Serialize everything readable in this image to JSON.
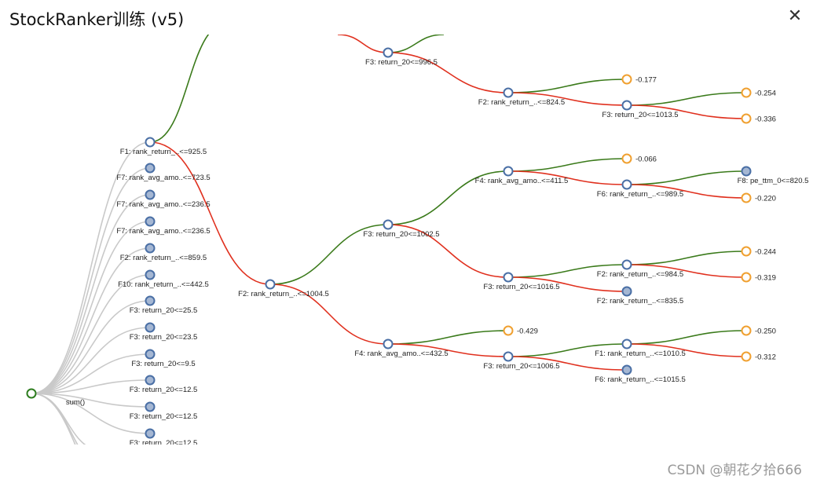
{
  "dialog": {
    "title": "StockRanker训练 (v5)",
    "close_icon": "close-icon"
  },
  "watermark": "CSDN @朝花夕拾666",
  "colors": {
    "edge_green": "#3a7a1a",
    "edge_red": "#e0301e",
    "edge_gray": "#c9c9c9",
    "node_stroke": "#4a6fa5",
    "node_fill_collapsed": "#a5b7d3",
    "leaf_stroke": "#f0a030",
    "root_stroke": "#2e7d1f"
  },
  "tree": {
    "root_label": "sum()",
    "left_column": [
      "F1: rank_return_..<=925.5",
      "F7: rank_avg_amo..<=723.5",
      "F7: rank_avg_amo..<=236.5",
      "F7: rank_avg_amo..<=236.5",
      "F2: rank_return_..<=859.5",
      "F10: rank_return_..<=442.5",
      "F3: return_20<=25.5",
      "F3: return_20<=23.5",
      "F3: return_20<=9.5",
      "F3: return_20<=12.5",
      "F3: return_20<=12.5",
      "F3: return_20<=12.5"
    ],
    "nodes": {
      "n_f2_mid": "F2: rank_return_..<=1004.5",
      "n_f3_top": "F3: return_20<=996.5",
      "n_f2_824": "F2: rank_return_..<=824.5",
      "n_f3_1013": "F3: return_20<=1013.5",
      "n_f3_1002": "F3: return_20<=1002.5",
      "n_f4_411": "F4: rank_avg_amo..<=411.5",
      "n_f6_989": "F6: rank_return_..<=989.5",
      "n_f8": "F8: pe_ttm_0<=820.5",
      "n_f3_1016": "F3: return_20<=1016.5",
      "n_f2_984": "F2: rank_return_..<=984.5",
      "n_f2_835": "F2: rank_return_..<=835.5",
      "n_f4_432": "F4: rank_avg_amo..<=432.5",
      "n_f3_1006": "F3: return_20<=1006.5",
      "n_f1_1010": "F1: rank_return_..<=1010.5",
      "n_f6_1015": "F6: rank_return_..<=1015.5"
    },
    "leaves": {
      "l_0177": "-0.177",
      "l_0254": "-0.254",
      "l_0336": "-0.336",
      "l_0066": "-0.066",
      "l_0220": "-0.220",
      "l_0244": "-0.244",
      "l_0319": "-0.319",
      "l_0429": "-0.429",
      "l_0250": "-0.250",
      "l_0312": "-0.312"
    }
  }
}
